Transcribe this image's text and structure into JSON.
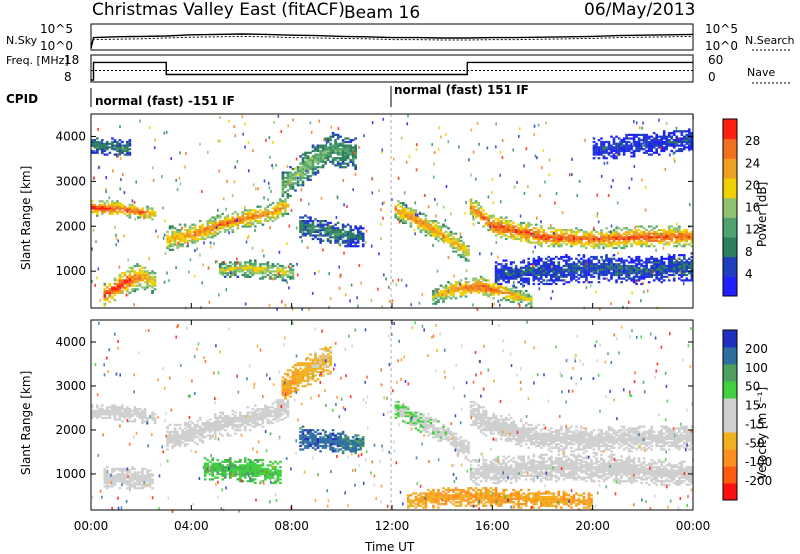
{
  "header": {
    "title": "Christmas Valley East (fitACF)",
    "beam": "Beam 16",
    "date": "06/May/2013"
  },
  "colors": {
    "power": [
      "#1f1fff",
      "#1f3fbf",
      "#2f7f5f",
      "#4fa36f",
      "#8fc46f",
      "#f0d000",
      "#f0a020",
      "#f07020",
      "#ff2010"
    ],
    "velocity": [
      "#ff1010",
      "#ff5a10",
      "#ff9020",
      "#f0b020",
      "#cfcfcf",
      "#cfcfcf",
      "#40d040",
      "#4fa05f",
      "#2f6fa0",
      "#1f2fbf"
    ]
  },
  "chart_data": [
    {
      "type": "line",
      "name": "summary",
      "x_label": "Time UT",
      "x_range_hours": [
        0,
        24
      ],
      "x_ticks": [
        "00:00",
        "04:00",
        "08:00",
        "12:00",
        "16:00",
        "20:00",
        "00:00"
      ],
      "nsky": {
        "label": "N.Sky",
        "right_label": "N.Search",
        "y_ticks": [
          "10^5",
          "10^0"
        ],
        "hours": [
          0,
          0.1,
          1,
          2,
          3,
          4,
          5,
          6,
          7,
          8,
          9,
          10,
          11,
          12,
          13,
          14,
          15,
          16,
          17,
          18,
          19,
          20,
          21,
          22,
          23,
          24
        ],
        "n_sky_log": [
          0.0,
          2.6,
          2.8,
          2.9,
          3.0,
          3.3,
          3.4,
          3.5,
          3.4,
          3.2,
          3.1,
          2.9,
          2.8,
          2.6,
          2.6,
          2.5,
          2.5,
          2.6,
          2.6,
          2.7,
          2.8,
          2.9,
          3.1,
          3.2,
          3.3,
          3.4
        ],
        "n_search_log": [
          0.0,
          2.1,
          2.2,
          2.3,
          2.5,
          2.7,
          2.8,
          2.9,
          2.8,
          2.6,
          2.5,
          2.4,
          2.3,
          2.1,
          2.1,
          2.0,
          2.0,
          2.1,
          2.1,
          2.2,
          2.3,
          2.4,
          2.6,
          2.7,
          2.8,
          2.9
        ]
      },
      "freq": {
        "label": "Freq. [MHz]",
        "right_label": "Nave",
        "y_ticks_left": [
          18,
          8
        ],
        "y_ticks_right": [
          60,
          0
        ],
        "step_hours": [
          0,
          0.1,
          3.0,
          15.0,
          24.0
        ],
        "freq_mhz": [
          8,
          16,
          10.5,
          16,
          16
        ],
        "nave": [
          26,
          26,
          26,
          26,
          26
        ]
      },
      "cpid": {
        "label": "CPID",
        "segments": [
          {
            "start_hour": 0,
            "text": "normal (fast) -151 IF"
          },
          {
            "start_hour": 12,
            "text": "normal (fast) 151 IF"
          }
        ]
      }
    },
    {
      "type": "heatmap",
      "name": "power",
      "ylabel": "Slant Range [km]",
      "ylim_km": [
        180,
        4500
      ],
      "y_ticks": [
        1000,
        2000,
        3000,
        4000
      ],
      "colorbar": {
        "label": "Power [dB]",
        "ticks": [
          4,
          8,
          12,
          16,
          20,
          24,
          28
        ],
        "range": [
          0,
          32
        ]
      },
      "bands": [
        {
          "name": "band-a",
          "hours": [
            0.0,
            1.0,
            2.0,
            2.6
          ],
          "range_km": [
            2400,
            2380,
            2300,
            2250
          ],
          "width_km": [
            180,
            170,
            160,
            150
          ],
          "peak": [
            0.95,
            0.9,
            0.85,
            0.7
          ]
        },
        {
          "name": "band-b",
          "hours": [
            3.0,
            4.0,
            5.0,
            6.0,
            7.0,
            7.8
          ],
          "range_km": [
            1700,
            1800,
            2000,
            2150,
            2250,
            2450
          ],
          "width_km": [
            280,
            260,
            240,
            240,
            220,
            220
          ],
          "peak": [
            0.7,
            0.78,
            0.82,
            0.82,
            0.78,
            0.7
          ]
        },
        {
          "name": "band-c",
          "hours": [
            5.0,
            6.0,
            7.0,
            8.0
          ],
          "range_km": [
            1000,
            1050,
            1000,
            950
          ],
          "width_km": [
            170,
            190,
            200,
            200
          ],
          "peak": [
            0.55,
            0.65,
            0.6,
            0.55
          ]
        },
        {
          "name": "band-d",
          "hours": [
            0.5,
            1.2,
            2.0,
            2.6
          ],
          "range_km": [
            450,
            700,
            900,
            700
          ],
          "width_km": [
            260,
            300,
            300,
            260
          ],
          "peak": [
            0.95,
            0.95,
            0.8,
            0.6
          ]
        },
        {
          "name": "band-e",
          "hours": [
            7.5,
            8.5,
            9.5,
            10.5
          ],
          "range_km": [
            2800,
            3300,
            3700,
            3600
          ],
          "width_km": [
            350,
            380,
            380,
            360
          ],
          "peak": [
            0.45,
            0.5,
            0.4,
            0.35
          ]
        },
        {
          "name": "band-f",
          "hours": [
            8.2,
            9.0,
            10.0,
            10.8
          ],
          "range_km": [
            2000,
            1900,
            1800,
            1750
          ],
          "width_km": [
            260,
            280,
            260,
            220
          ],
          "peak": [
            0.25,
            0.3,
            0.3,
            0.22
          ]
        },
        {
          "name": "band-g",
          "hours": [
            12.0,
            13.0,
            14.0,
            15.0
          ],
          "range_km": [
            2400,
            2100,
            1800,
            1400
          ],
          "width_km": [
            220,
            240,
            230,
            220
          ],
          "peak": [
            0.75,
            0.8,
            0.75,
            0.65
          ]
        },
        {
          "name": "band-h",
          "hours": [
            15.0,
            16.0,
            18.0,
            20.0,
            22.0,
            24.0
          ],
          "range_km": [
            2450,
            2000,
            1750,
            1700,
            1750,
            1750
          ],
          "width_km": [
            240,
            250,
            230,
            230,
            240,
            230
          ],
          "peak": [
            0.8,
            0.9,
            0.92,
            0.85,
            0.9,
            0.85
          ]
        },
        {
          "name": "band-i",
          "hours": [
            13.5,
            14.5,
            15.5,
            16.5,
            17.5
          ],
          "range_km": [
            400,
            600,
            650,
            500,
            350
          ],
          "width_km": [
            200,
            220,
            220,
            200,
            180
          ],
          "peak": [
            0.55,
            0.8,
            0.9,
            0.8,
            0.6
          ]
        },
        {
          "name": "band-j",
          "hours": [
            16.0,
            18.0,
            20.0,
            22.0,
            24.0
          ],
          "range_km": [
            900,
            1000,
            1050,
            1000,
            1100
          ],
          "width_km": [
            300,
            320,
            320,
            320,
            320
          ],
          "peak": [
            0.18,
            0.2,
            0.2,
            0.2,
            0.22
          ]
        },
        {
          "name": "band-k",
          "hours": [
            0.0,
            0.8,
            1.6
          ],
          "range_km": [
            3800,
            3750,
            3700
          ],
          "width_km": [
            200,
            200,
            200
          ],
          "peak": [
            0.3,
            0.3,
            0.25
          ]
        },
        {
          "name": "band-l",
          "hours": [
            20.0,
            22.0,
            24.0
          ],
          "range_km": [
            3700,
            3800,
            3900
          ],
          "width_km": [
            250,
            260,
            260
          ],
          "peak": [
            0.15,
            0.15,
            0.18
          ]
        }
      ]
    },
    {
      "type": "heatmap",
      "name": "velocity",
      "ylabel": "Slant Range [km]",
      "ylim_km": [
        180,
        4500
      ],
      "y_ticks": [
        1000,
        2000,
        3000,
        4000
      ],
      "colorbar": {
        "label": "Velocity [m s⁻¹]",
        "ticks": [
          200,
          100,
          50,
          15,
          -15,
          -50,
          -100,
          -200
        ]
      },
      "bands": [
        {
          "name": "v-band-a",
          "hours": [
            0.0,
            1.0,
            2.0,
            2.6
          ],
          "range_km": [
            2400,
            2380,
            2300,
            2250
          ],
          "width_km": [
            200,
            190,
            180,
            160
          ],
          "peak": [
            0.5,
            0.5,
            0.5,
            0.5
          ]
        },
        {
          "name": "v-band-b",
          "hours": [
            3.0,
            4.0,
            5.0,
            6.0,
            7.0,
            7.8
          ],
          "range_km": [
            1800,
            1900,
            2100,
            2200,
            2350,
            2500
          ],
          "width_km": [
            320,
            300,
            300,
            280,
            260,
            250
          ],
          "peak": [
            0.48,
            0.5,
            0.5,
            0.5,
            0.5,
            0.5
          ]
        },
        {
          "name": "v-band-c",
          "hours": [
            4.5,
            5.5,
            6.5,
            7.5
          ],
          "range_km": [
            1100,
            1100,
            1050,
            1000
          ],
          "width_km": [
            260,
            280,
            280,
            260
          ],
          "peak": [
            0.65,
            0.68,
            0.66,
            0.64
          ]
        },
        {
          "name": "v-band-d",
          "hours": [
            0.5,
            1.5,
            2.5
          ],
          "range_km": [
            900,
            900,
            850
          ],
          "width_km": [
            260,
            260,
            220
          ],
          "peak": [
            0.5,
            0.5,
            0.5
          ]
        },
        {
          "name": "v-band-e",
          "hours": [
            8.2,
            9.0,
            10.0,
            10.8
          ],
          "range_km": [
            1800,
            1750,
            1700,
            1650
          ],
          "width_km": [
            280,
            280,
            260,
            220
          ],
          "peak": [
            0.85,
            0.88,
            0.85,
            0.8
          ]
        },
        {
          "name": "v-band-f",
          "hours": [
            7.5,
            8.5,
            9.5
          ],
          "range_km": [
            2900,
            3300,
            3600
          ],
          "width_km": [
            350,
            360,
            340
          ],
          "peak": [
            0.3,
            0.35,
            0.4
          ]
        },
        {
          "name": "v-band-g",
          "hours": [
            12.0,
            13.0,
            14.0,
            15.0
          ],
          "range_km": [
            2500,
            2200,
            1900,
            1500
          ],
          "width_km": [
            220,
            240,
            230,
            220
          ],
          "peak": [
            0.62,
            0.6,
            0.55,
            0.52
          ]
        },
        {
          "name": "v-band-h",
          "hours": [
            15.0,
            16.0,
            18.0,
            20.0,
            22.0,
            24.0
          ],
          "range_km": [
            2400,
            2050,
            1800,
            1750,
            1800,
            1800
          ],
          "width_km": [
            300,
            320,
            300,
            300,
            300,
            300
          ],
          "peak": [
            0.5,
            0.5,
            0.5,
            0.5,
            0.5,
            0.5
          ]
        },
        {
          "name": "v-band-i",
          "hours": [
            15.0,
            17.0,
            19.0,
            21.0,
            23.0,
            24.0
          ],
          "range_km": [
            1000,
            1100,
            1150,
            1100,
            1000,
            1000
          ],
          "width_km": [
            320,
            320,
            320,
            320,
            300,
            300
          ],
          "peak": [
            0.48,
            0.5,
            0.5,
            0.5,
            0.5,
            0.5
          ]
        },
        {
          "name": "v-band-j",
          "hours": [
            12.5,
            14.0,
            16.0,
            18.0,
            20.0
          ],
          "range_km": [
            350,
            450,
            450,
            400,
            350
          ],
          "width_km": [
            200,
            220,
            220,
            200,
            200
          ],
          "peak": [
            0.32,
            0.3,
            0.3,
            0.32,
            0.3
          ]
        }
      ]
    }
  ]
}
